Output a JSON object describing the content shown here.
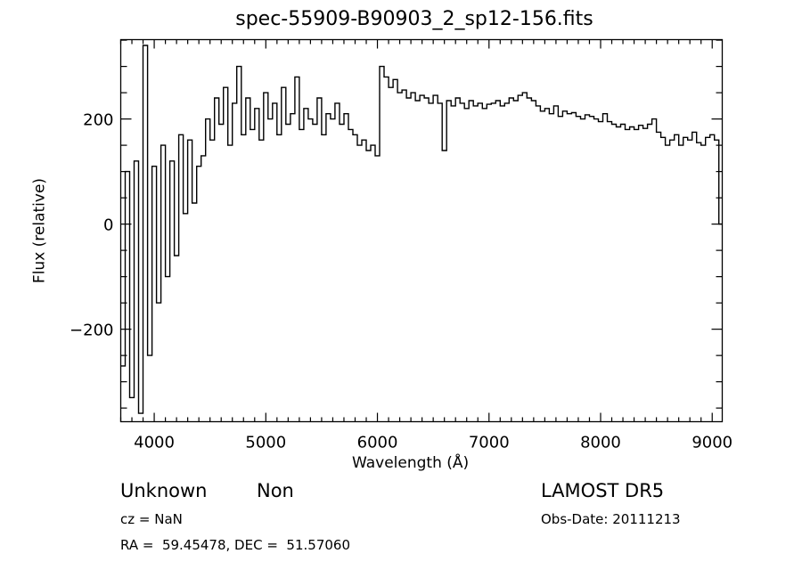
{
  "chart_data": {
    "type": "line",
    "title": "spec-55909-B90903_2_sp12-156.fits",
    "xlabel": "Wavelength (Å)",
    "ylabel": "Flux (relative)",
    "xlim": [
      3700,
      9090
    ],
    "ylim": [
      -376,
      351
    ],
    "x_ticks": [
      4000,
      5000,
      6000,
      7000,
      8000,
      9000
    ],
    "x_tick_labels": [
      "4000",
      "5000",
      "6000",
      "7000",
      "8000",
      "9000"
    ],
    "y_ticks": [
      -200,
      0,
      200
    ],
    "y_tick_labels": [
      "−200",
      "0",
      "200"
    ],
    "grid": false,
    "series": [
      {
        "name": "flux",
        "color": "#000000",
        "x_start": 3700,
        "x_step": 40,
        "values": [
          -270,
          100,
          -330,
          120,
          -360,
          340,
          -250,
          110,
          -150,
          150,
          -100,
          120,
          -60,
          170,
          20,
          160,
          40,
          110,
          130,
          200,
          160,
          240,
          190,
          260,
          150,
          230,
          300,
          170,
          240,
          180,
          220,
          160,
          250,
          200,
          230,
          170,
          260,
          190,
          210,
          280,
          180,
          220,
          200,
          190,
          240,
          170,
          210,
          200,
          230,
          190,
          210,
          180,
          170,
          150,
          160,
          140,
          150,
          130,
          300,
          280,
          260,
          275,
          250,
          255,
          240,
          250,
          235,
          245,
          240,
          230,
          245,
          230,
          140,
          235,
          225,
          240,
          230,
          220,
          235,
          225,
          230,
          220,
          228,
          230,
          235,
          225,
          230,
          240,
          235,
          245,
          250,
          240,
          235,
          225,
          215,
          220,
          210,
          225,
          205,
          215,
          210,
          212,
          205,
          200,
          208,
          205,
          200,
          195,
          210,
          195,
          190,
          185,
          190,
          180,
          185,
          180,
          188,
          182,
          190,
          200,
          175,
          165,
          150,
          160,
          170,
          150,
          165,
          160,
          175,
          155,
          150,
          165,
          170,
          160,
          0
        ]
      }
    ]
  },
  "info": {
    "class": "Unknown",
    "subclass": "Non",
    "survey": "LAMOST DR5",
    "cz": "cz = NaN",
    "obs_date": "Obs-Date: 20111213",
    "coords": "RA =  59.45478, DEC =  51.57060"
  }
}
